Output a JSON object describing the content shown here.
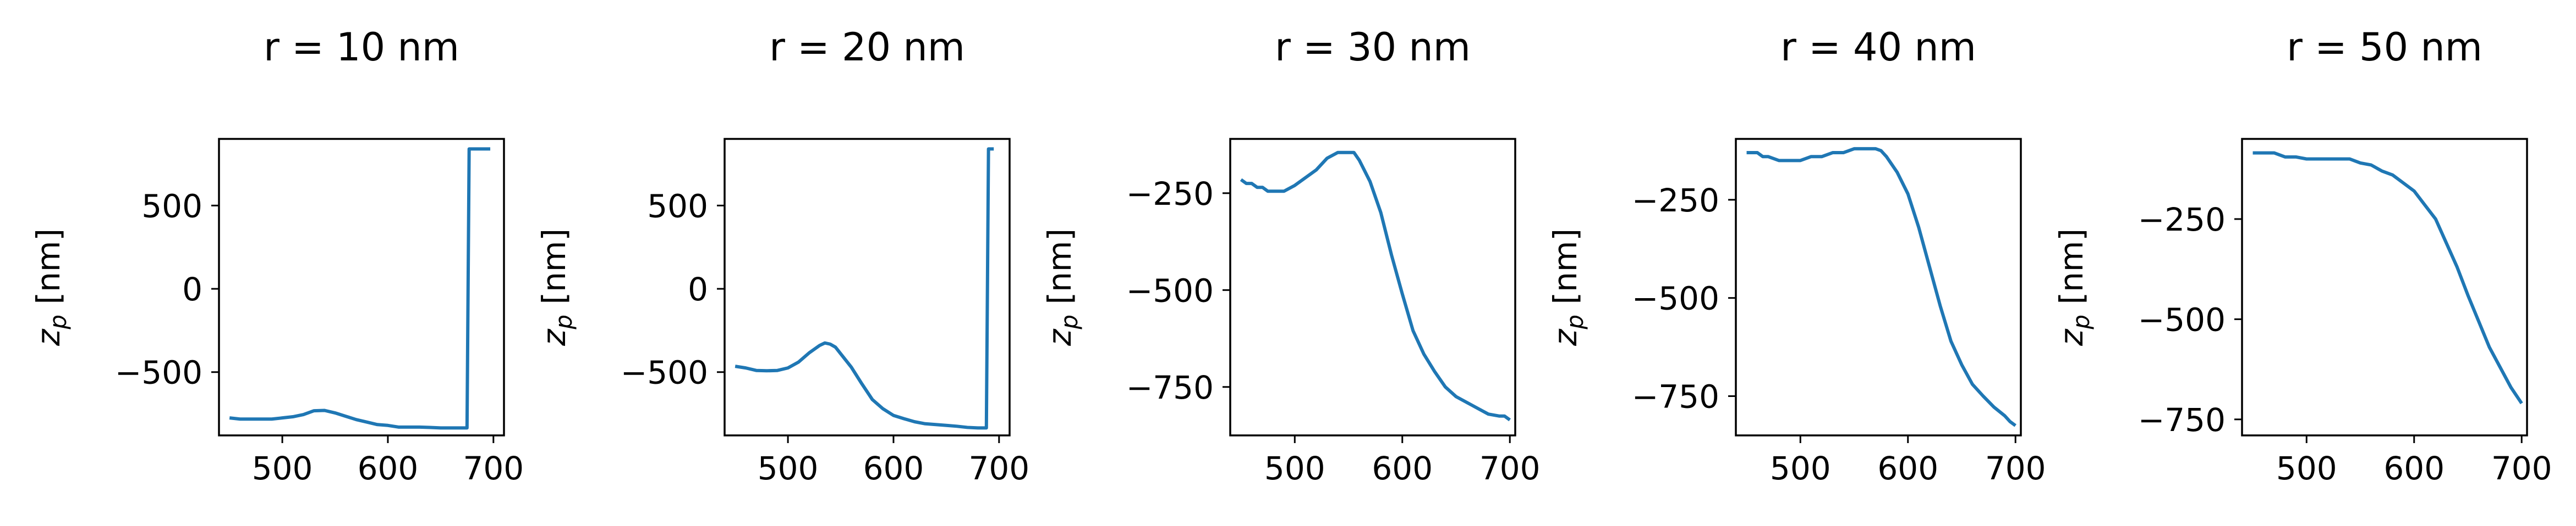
{
  "colors": {
    "line": "#1f77b4",
    "axes": "#000000",
    "background": "#ffffff"
  },
  "chart_data": [
    {
      "type": "line",
      "title": "r = 10 nm",
      "xlabel": "",
      "ylabel_base": "z",
      "ylabel_sub": "p",
      "ylabel_unit": " [nm]",
      "xlim": [
        440,
        710
      ],
      "ylim": [
        -880,
        900
      ],
      "xticks": [
        500,
        600,
        700
      ],
      "yticks": [
        -500,
        0,
        500
      ],
      "ytick_labels": [
        "−500",
        "0",
        "500"
      ],
      "grid": false,
      "x": [
        450,
        460,
        470,
        480,
        490,
        500,
        510,
        520,
        530,
        540,
        550,
        560,
        570,
        580,
        590,
        600,
        610,
        620,
        630,
        640,
        650,
        660,
        670,
        675,
        677,
        680,
        690,
        697
      ],
      "y": [
        -775,
        -782,
        -782,
        -782,
        -782,
        -775,
        -768,
        -755,
        -732,
        -730,
        -745,
        -765,
        -785,
        -800,
        -815,
        -820,
        -830,
        -830,
        -830,
        -832,
        -835,
        -835,
        -835,
        -835,
        840,
        840,
        840,
        840
      ]
    },
    {
      "type": "line",
      "title": "r = 20 nm",
      "xlabel": "",
      "ylabel_base": "z",
      "ylabel_sub": "p",
      "ylabel_unit": " [nm]",
      "xlim": [
        440,
        710
      ],
      "ylim": [
        -880,
        900
      ],
      "xticks": [
        500,
        600,
        700
      ],
      "yticks": [
        -500,
        0,
        500
      ],
      "ytick_labels": [
        "−500",
        "0",
        "500"
      ],
      "grid": false,
      "x": [
        450,
        460,
        470,
        480,
        490,
        500,
        510,
        520,
        530,
        535,
        540,
        545,
        550,
        560,
        570,
        580,
        590,
        600,
        610,
        620,
        630,
        640,
        650,
        660,
        670,
        680,
        688,
        690,
        695
      ],
      "y": [
        -465,
        -475,
        -490,
        -492,
        -490,
        -475,
        -440,
        -385,
        -340,
        -325,
        -332,
        -350,
        -390,
        -470,
        -570,
        -665,
        -720,
        -760,
        -780,
        -798,
        -810,
        -815,
        -820,
        -825,
        -832,
        -835,
        -835,
        840,
        840
      ]
    },
    {
      "type": "line",
      "title": "r = 30 nm",
      "xlabel": "",
      "ylabel_base": "z",
      "ylabel_sub": "p",
      "ylabel_unit": " [nm]",
      "xlim": [
        440,
        705
      ],
      "ylim": [
        -875,
        -110
      ],
      "xticks": [
        500,
        600,
        700
      ],
      "yticks": [
        -750,
        -500,
        -250
      ],
      "ytick_labels": [
        "−750",
        "−500",
        "−250"
      ],
      "grid": false,
      "x": [
        450,
        455,
        460,
        465,
        470,
        475,
        480,
        490,
        500,
        510,
        520,
        530,
        540,
        550,
        555,
        560,
        570,
        580,
        590,
        600,
        610,
        620,
        630,
        640,
        650,
        660,
        670,
        680,
        690,
        695,
        700
      ],
      "y": [
        -215,
        -225,
        -225,
        -235,
        -235,
        -245,
        -245,
        -245,
        -230,
        -210,
        -190,
        -160,
        -145,
        -145,
        -145,
        -165,
        -220,
        -300,
        -410,
        -510,
        -605,
        -665,
        -710,
        -750,
        -775,
        -790,
        -805,
        -820,
        -825,
        -825,
        -835
      ]
    },
    {
      "type": "line",
      "title": "r = 40 nm",
      "xlabel": "",
      "ylabel_base": "z",
      "ylabel_sub": "p",
      "ylabel_unit": " [nm]",
      "xlim": [
        440,
        705
      ],
      "ylim": [
        -850,
        -95
      ],
      "xticks": [
        500,
        600,
        700
      ],
      "yticks": [
        -750,
        -500,
        -250
      ],
      "ytick_labels": [
        "−750",
        "−500",
        "−250"
      ],
      "grid": false,
      "x": [
        450,
        460,
        465,
        470,
        480,
        490,
        500,
        510,
        520,
        530,
        540,
        550,
        560,
        570,
        575,
        580,
        590,
        600,
        610,
        620,
        630,
        640,
        650,
        660,
        670,
        680,
        690,
        695,
        700
      ],
      "y": [
        -130,
        -130,
        -140,
        -140,
        -150,
        -150,
        -150,
        -140,
        -140,
        -130,
        -130,
        -120,
        -120,
        -120,
        -125,
        -140,
        -180,
        -235,
        -320,
        -420,
        -520,
        -610,
        -670,
        -720,
        -750,
        -778,
        -800,
        -815,
        -825
      ]
    },
    {
      "type": "line",
      "title": "r = 50 nm",
      "xlabel": "",
      "ylabel_base": "z",
      "ylabel_sub": "p",
      "ylabel_unit": " [nm]",
      "xlim": [
        440,
        705
      ],
      "ylim": [
        -790,
        -50
      ],
      "xticks": [
        500,
        600,
        700
      ],
      "yticks": [
        -750,
        -500,
        -250
      ],
      "ytick_labels": [
        "−750",
        "−500",
        "−250"
      ],
      "grid": false,
      "x": [
        450,
        460,
        470,
        480,
        490,
        500,
        510,
        520,
        530,
        540,
        550,
        560,
        570,
        580,
        590,
        600,
        610,
        620,
        630,
        640,
        650,
        660,
        670,
        680,
        690,
        700
      ],
      "y": [
        -85,
        -85,
        -85,
        -95,
        -95,
        -100,
        -100,
        -100,
        -100,
        -100,
        -110,
        -115,
        -130,
        -140,
        -160,
        -180,
        -215,
        -250,
        -310,
        -370,
        -440,
        -505,
        -570,
        -620,
        -670,
        -710
      ]
    }
  ]
}
